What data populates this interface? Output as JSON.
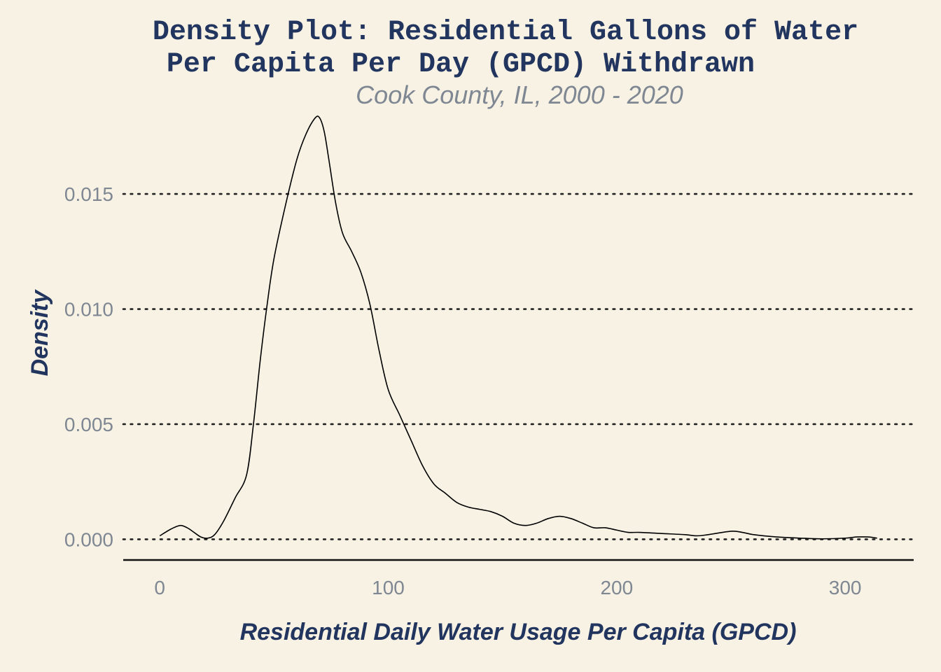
{
  "chart_data": {
    "type": "line",
    "title_lines": [
      "Density Plot: Residential Gallons of Water",
      "Per Capita Per Day (GPCD) Withdrawn"
    ],
    "subtitle": "Cook County, IL, 2000 - 2020",
    "xlabel": "Residential Daily Water Usage Per Capita (GPCD)",
    "ylabel": "Density",
    "xlim": [
      -16,
      330
    ],
    "ylim": [
      -0.0009,
      0.0185
    ],
    "x_ticks": [
      0,
      100,
      200,
      300
    ],
    "x_tick_labels": [
      "0",
      "100",
      "200",
      "300"
    ],
    "y_ticks": [
      0,
      0.005,
      0.01,
      0.015
    ],
    "y_tick_labels": [
      "0.000",
      "0.005",
      "0.010",
      "0.015"
    ],
    "grid": "horizontal dotted",
    "legend": "none",
    "series": [
      {
        "x": [
          0,
          5,
          9,
          12,
          15,
          18,
          21,
          24,
          28,
          33,
          38,
          41,
          44,
          47,
          50,
          55,
          60,
          64,
          68,
          70,
          72,
          74,
          77,
          80,
          84,
          88,
          92,
          96,
          100,
          105,
          110,
          115,
          120,
          125,
          130,
          135,
          140,
          145,
          150,
          155,
          160,
          165,
          170,
          175,
          180,
          185,
          190,
          195,
          200,
          205,
          210,
          220,
          230,
          235,
          240,
          250,
          255,
          260,
          270,
          280,
          290,
          300,
          305,
          310,
          314
        ],
        "y": [
          0.00015,
          0.00045,
          0.0006,
          0.0005,
          0.0003,
          0.0001,
          5e-05,
          0.0002,
          0.0008,
          0.0018,
          0.0028,
          0.005,
          0.0078,
          0.0102,
          0.0122,
          0.0145,
          0.0165,
          0.0176,
          0.0183,
          0.0183,
          0.0177,
          0.0165,
          0.0146,
          0.0133,
          0.0125,
          0.0116,
          0.0102,
          0.0082,
          0.0065,
          0.0054,
          0.0043,
          0.0032,
          0.0024,
          0.002,
          0.0016,
          0.0014,
          0.0013,
          0.0012,
          0.001,
          0.0007,
          0.0006,
          0.0007,
          0.0009,
          0.001,
          0.0009,
          0.0007,
          0.0005,
          0.0005,
          0.0004,
          0.0003,
          0.0003,
          0.00025,
          0.0002,
          0.00015,
          0.0002,
          0.00035,
          0.0003,
          0.0002,
          0.0001,
          5e-05,
          2e-05,
          5e-05,
          0.0001,
          0.0001,
          5e-05
        ]
      }
    ]
  },
  "colors": {
    "background": "#F7F2E4",
    "title": "#22355F",
    "subtitle": "#7F8793",
    "tick_label": "#7F8793",
    "line": "#000000"
  }
}
